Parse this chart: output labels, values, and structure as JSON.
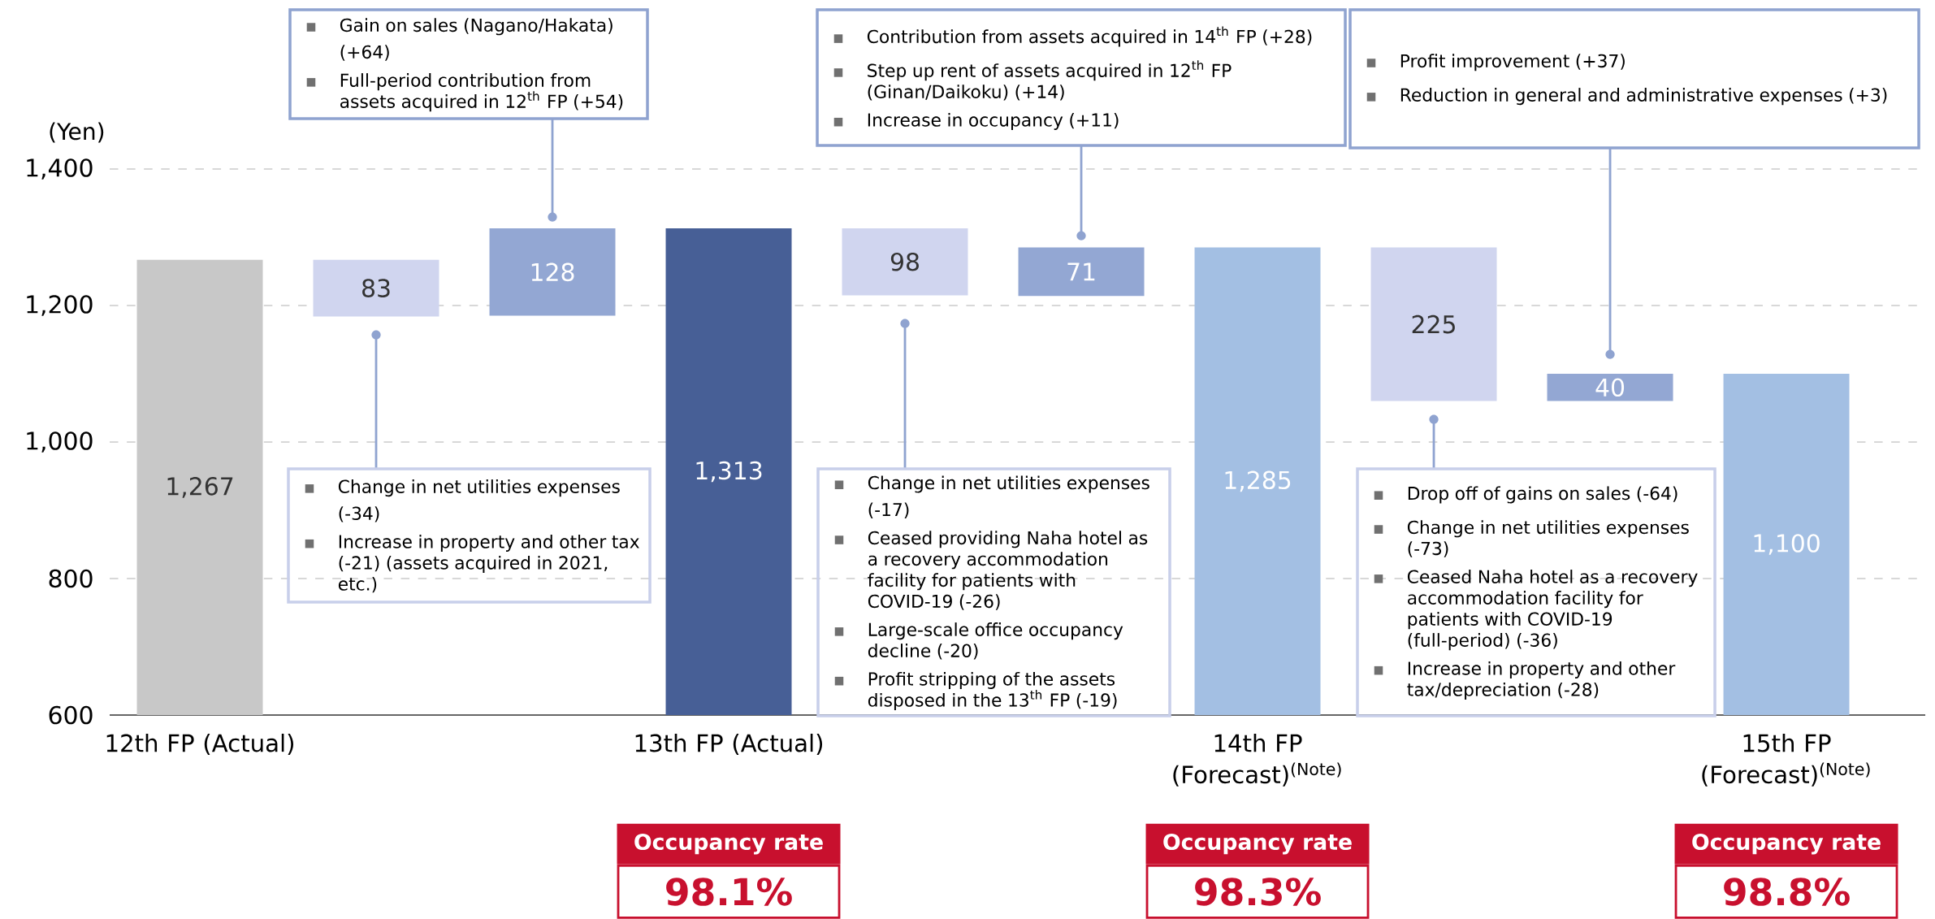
{
  "chart_data": {
    "type": "bar",
    "ylabel": "(Yen)",
    "categories": [
      "12th FP (Actual)",
      null,
      null,
      "13th FP (Actual)",
      null,
      null,
      "14th FP (Forecast)$^{(Note)}$",
      null,
      null,
      "15th FP (Forecast)$^{(Note)}$"
    ],
    "values": [
      1267,
      83,
      128,
      1313,
      98,
      71,
      1285,
      225,
      40,
      1100
    ],
    "base": [
      null,
      1184,
      1185,
      null,
      1215,
      1214,
      null,
      1060,
      1060,
      null
    ],
    "colors": [
      "#c8c8c8",
      "#d0d5ef",
      "#93a7d3",
      "#475f96",
      "#d0d5ef",
      "#93a7d3",
      "#a3bfe3",
      "#d0d5ef",
      "#93a7d3",
      "#a3bfe3"
    ],
    "value_labels": [
      "1,267",
      "83",
      "128",
      "1,313",
      "98",
      "71",
      "1,285",
      "225",
      "40",
      "1,100"
    ],
    "ylim": [
      600,
      1400
    ],
    "yticks": [
      {
        "value": 600,
        "label": "600"
      },
      {
        "value": 800,
        "label": "800"
      },
      {
        "value": 1000,
        "label": "1,000"
      },
      {
        "value": 1200,
        "label": "1,200"
      },
      {
        "value": 1400,
        "label": "1,400"
      }
    ],
    "grid": "y",
    "annotations": [
      "Gain on sales (Nagano/Hakata) (+64)",
      "Full-period contribution from assets acquired in 12$^{th}$ FP (+54)",
      "Contribution from assets acquired in 14$^{th}$ FP (+28)",
      "Step up rent of assets acquired in 12$^{th}$ FP (Ginan/Daikoku) (+14)",
      "Increase in occupancy (+11)",
      "Profit improvement (+37)",
      "Reduction in general and administrative expenses (+3)",
      "Change in net utilities expenses (-34)",
      "Increase in property and other tax (-21) (assets acquired in 2021, etc.)",
      "Change in net utilities expenses (-17)",
      "Ceased providing Naha hotel as a recovery accommodation facility for patients with COVID-19 (-26)",
      "Large-scale office occupancy decline (-20)",
      "Profit stripping of the assets disposed in the 13$^{th}$ FP (-19)",
      "Drop off of gains on sales (-64)",
      "Change in net utilities expenses (-73)",
      "Ceased Naha hotel as a recovery accommodation facility for patients with COVID-19 (full-period) (-36)",
      "Increase in property and other tax/depreciation (-28)",
      "Occupancy rate",
      "98.1%",
      "Occupancy rate",
      "98.3%",
      "Occupancy rate",
      "98.8%"
    ]
  }
}
